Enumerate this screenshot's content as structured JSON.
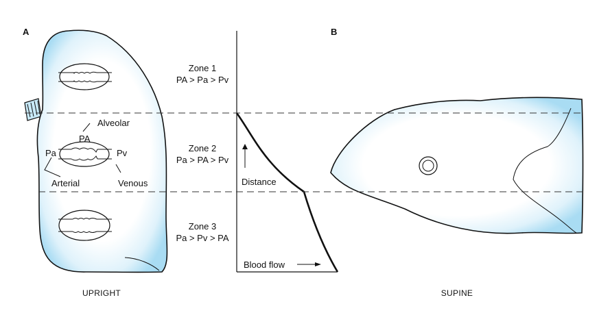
{
  "panels": {
    "a": {
      "letter": "A",
      "caption": "UPRIGHT"
    },
    "b": {
      "letter": "B",
      "caption": "SUPINE"
    }
  },
  "zones": [
    {
      "name": "Zone 1",
      "relation": "PA > Pa > Pv"
    },
    {
      "name": "Zone 2",
      "relation": "Pa > PA > Pv"
    },
    {
      "name": "Zone 3",
      "relation": "Pa > Pv > PA"
    }
  ],
  "vessel_labels": {
    "alveolar": "Alveolar",
    "alveolar_pressure": "PA",
    "arterial_pressure": "Pa",
    "venous_pressure": "Pv",
    "arterial": "Arterial",
    "venous": "Venous"
  },
  "graph": {
    "y_axis_label": "Distance",
    "x_axis_label": "Blood flow"
  },
  "colors": {
    "lung_fill": "#a9dcf3",
    "lung_edge": "#dff2fb",
    "ink": "#111111"
  }
}
